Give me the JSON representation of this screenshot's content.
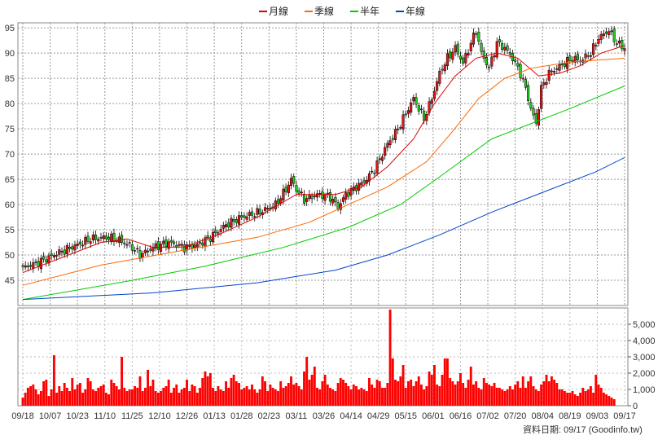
{
  "chart_data": {
    "type": "candlestick",
    "legend": [
      {
        "name": "月線",
        "color": "#e00000"
      },
      {
        "name": "季線",
        "color": "#ff6600"
      },
      {
        "name": "半年",
        "color": "#00cc00"
      },
      {
        "name": "年線",
        "color": "#0044cc"
      }
    ],
    "legend_position": "top-center",
    "grid": true,
    "price_axis": {
      "side": "left",
      "range": [
        40,
        96
      ],
      "ticks": [
        45,
        50,
        55,
        60,
        65,
        70,
        75,
        80,
        85,
        90,
        95
      ]
    },
    "volume_axis": {
      "side": "right",
      "range": [
        0,
        6000
      ],
      "ticks": [
        "0",
        "1,000",
        "2,000",
        "3,000",
        "4,000",
        "5,000"
      ]
    },
    "x_labels": [
      "09/18",
      "10/07",
      "10/23",
      "11/10",
      "11/25",
      "12/10",
      "12/26",
      "01/13",
      "01/28",
      "02/23",
      "03/11",
      "03/26",
      "04/14",
      "04/29",
      "05/15",
      "06/01",
      "06/16",
      "07/02",
      "07/20",
      "08/04",
      "08/19",
      "09/03",
      "09/17"
    ],
    "price_path": [
      [
        0,
        47.5
      ],
      [
        6,
        48.5
      ],
      [
        14,
        50.5
      ],
      [
        21,
        52
      ],
      [
        26,
        53.2
      ],
      [
        32,
        53.5
      ],
      [
        37,
        53
      ],
      [
        42,
        51.5
      ],
      [
        45,
        50
      ],
      [
        50,
        51.5
      ],
      [
        56,
        52.5
      ],
      [
        62,
        51.5
      ],
      [
        67,
        52
      ],
      [
        72,
        53.5
      ],
      [
        78,
        56
      ],
      [
        84,
        57.5
      ],
      [
        91,
        58.5
      ],
      [
        97,
        60
      ],
      [
        101,
        63
      ],
      [
        103,
        65
      ],
      [
        105,
        63
      ],
      [
        108,
        61
      ],
      [
        113,
        62
      ],
      [
        118,
        61.5
      ],
      [
        121,
        59.5
      ],
      [
        124,
        62
      ],
      [
        128,
        63.5
      ],
      [
        131,
        64.5
      ],
      [
        135,
        67
      ],
      [
        140,
        72
      ],
      [
        144,
        75
      ],
      [
        147,
        78
      ],
      [
        150,
        81
      ],
      [
        152,
        79
      ],
      [
        154,
        77
      ],
      [
        157,
        81
      ],
      [
        160,
        86
      ],
      [
        163,
        89
      ],
      [
        166,
        91
      ],
      [
        169,
        88
      ],
      [
        172,
        92
      ],
      [
        174,
        94.5
      ],
      [
        176,
        90
      ],
      [
        179,
        87
      ],
      [
        182,
        92
      ],
      [
        185,
        91
      ],
      [
        188,
        89
      ],
      [
        191,
        86
      ],
      [
        193,
        83
      ],
      [
        195,
        79
      ],
      [
        197,
        76
      ],
      [
        199,
        83
      ],
      [
        202,
        86
      ],
      [
        205,
        87
      ],
      [
        208,
        88
      ],
      [
        211,
        89
      ],
      [
        214,
        88.5
      ],
      [
        218,
        90
      ],
      [
        221,
        93
      ],
      [
        225,
        94.5
      ],
      [
        228,
        92
      ],
      [
        231,
        91
      ]
    ],
    "moving_averages": {
      "月線": [
        [
          0,
          46.5
        ],
        [
          15,
          49.5
        ],
        [
          30,
          52.5
        ],
        [
          40,
          53.2
        ],
        [
          50,
          51.5
        ],
        [
          62,
          51.6
        ],
        [
          75,
          54
        ],
        [
          90,
          57.5
        ],
        [
          105,
          62
        ],
        [
          120,
          62
        ],
        [
          130,
          63.5
        ],
        [
          140,
          67.5
        ],
        [
          150,
          73
        ],
        [
          158,
          80
        ],
        [
          166,
          85.5
        ],
        [
          174,
          89
        ],
        [
          182,
          90
        ],
        [
          190,
          89
        ],
        [
          198,
          85.5
        ],
        [
          206,
          86
        ],
        [
          214,
          87.5
        ],
        [
          222,
          90
        ],
        [
          231,
          91.5
        ]
      ],
      "季線": [
        [
          0,
          44
        ],
        [
          30,
          48
        ],
        [
          60,
          50.8
        ],
        [
          90,
          53.5
        ],
        [
          110,
          56.5
        ],
        [
          125,
          60
        ],
        [
          140,
          63.5
        ],
        [
          155,
          68.5
        ],
        [
          165,
          74.5
        ],
        [
          175,
          81
        ],
        [
          185,
          85
        ],
        [
          195,
          87
        ],
        [
          210,
          88.2
        ],
        [
          231,
          89
        ]
      ],
      "半年": [
        [
          0,
          41.2
        ],
        [
          40,
          44.8
        ],
        [
          70,
          47.8
        ],
        [
          100,
          51.5
        ],
        [
          125,
          55.5
        ],
        [
          145,
          60
        ],
        [
          160,
          65.5
        ],
        [
          180,
          73
        ],
        [
          195,
          76
        ],
        [
          210,
          79
        ],
        [
          231,
          83.5
        ]
      ],
      "年線": [
        [
          0,
          41.2
        ],
        [
          50,
          42.5
        ],
        [
          90,
          44.5
        ],
        [
          120,
          47
        ],
        [
          140,
          50
        ],
        [
          160,
          54
        ],
        [
          180,
          58.5
        ],
        [
          200,
          62.5
        ],
        [
          220,
          66.5
        ],
        [
          231,
          69.3
        ]
      ]
    },
    "volume_levels": [
      500,
      800,
      1100,
      1200,
      1300,
      1000,
      700,
      900,
      1500,
      1600,
      600,
      1000,
      3100,
      800,
      1200,
      900,
      1400,
      1100,
      900,
      1700,
      1000,
      1300,
      1400,
      800,
      1000,
      1700,
      1500,
      1000,
      900,
      1100,
      1200,
      1300,
      800,
      700,
      1600,
      1400,
      1200,
      1000,
      3000,
      1100,
      900,
      1000,
      1000,
      1200,
      1100,
      1800,
      900,
      1100,
      2200,
      1200,
      1600,
      900,
      800,
      900,
      1100,
      1200,
      1600,
      800,
      1100,
      1300,
      800,
      1000,
      1100,
      1600,
      900,
      1300,
      1200,
      800,
      1100,
      1700,
      2100,
      1800,
      2000,
      1100,
      900,
      1200,
      1000,
      900,
      1500,
      1100,
      1700,
      1900,
      1500,
      1400,
      1000,
      1100,
      1200,
      1000,
      1300,
      1000,
      800,
      1000,
      1800,
      1500,
      900,
      1300,
      1100,
      1000,
      900,
      1500,
      1100,
      1200,
      1400,
      1800,
      1300,
      1400,
      1200,
      1000,
      2100,
      3000,
      1600,
      1900,
      2400,
      1100,
      1000,
      1500,
      1900,
      1300,
      1100,
      1000,
      900,
      1400,
      1700,
      1600,
      1400,
      1200,
      1000,
      1300,
      1200,
      1000,
      1100,
      1000,
      900,
      1700,
      1300,
      1100,
      1600,
      1500,
      1100,
      1100,
      1400,
      5900,
      2900,
      1600,
      1500,
      1800,
      2500,
      1100,
      1500,
      1600,
      1200,
      1500,
      1800,
      1300,
      1000,
      1200,
      2100,
      1900,
      2500,
      1300,
      1200,
      1900,
      2900,
      2900,
      1700,
      1500,
      1300,
      1500,
      2000,
      1400,
      1100,
      1600,
      2400,
      1300,
      1500,
      1100,
      1000,
      1700,
      1400,
      1300,
      1200,
      1400,
      1100,
      1100,
      1000,
      900,
      1000,
      1200,
      1000,
      1300,
      1500,
      1100,
      1800,
      1100,
      1500,
      1800,
      1200,
      1000,
      900,
      1300,
      1500,
      1900,
      1500,
      1800,
      1600,
      1400,
      1000,
      1000,
      900,
      800,
      800,
      900,
      700,
      600,
      800,
      1100,
      900,
      1000,
      1200,
      800,
      1900,
      1300,
      1100,
      800,
      700,
      600,
      500,
      400
    ]
  },
  "footer": {
    "source_label": "資料日期:",
    "source_date": "09/17",
    "source_site": "(Goodinfo.tw)"
  }
}
